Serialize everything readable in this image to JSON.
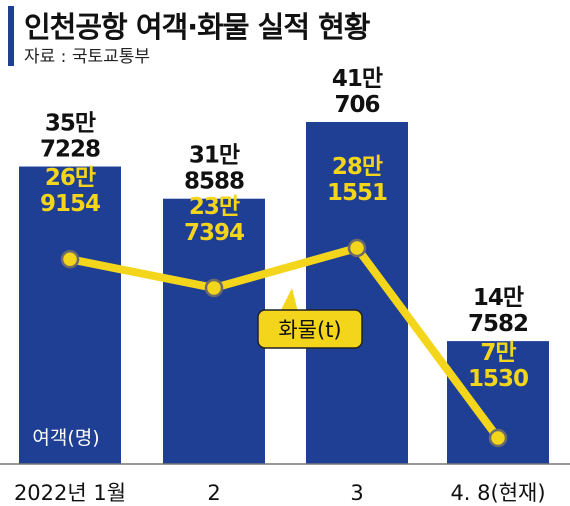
{
  "header": {
    "title": "인천공항 여객·화물 실적 현황",
    "source": "자료 : 국토교통부"
  },
  "chart_data": {
    "type": "bar",
    "categories": [
      "2022년 1월",
      "2",
      "3",
      "4. 8(현재)"
    ],
    "series": [
      {
        "name": "여객(명)",
        "type": "bar",
        "values": [
          357228,
          318588,
          410706,
          147582
        ],
        "labels": [
          [
            "35만",
            "7228"
          ],
          [
            "31만",
            "8588"
          ],
          [
            "41만",
            "706"
          ],
          [
            "14만",
            "7582"
          ]
        ]
      },
      {
        "name": "화물(t)",
        "type": "line",
        "values": [
          269154,
          237394,
          281551,
          71530
        ],
        "labels": [
          [
            "26만",
            "9154"
          ],
          [
            "23만",
            "7394"
          ],
          [
            "28만",
            "1551"
          ],
          [
            "7만",
            "1530"
          ]
        ]
      }
    ],
    "grid": false,
    "legend": "inline",
    "colors": {
      "bar": "#1e3f94",
      "line": "#f3d51b",
      "line_label": "#f3d51b",
      "bar_label": "#111111",
      "point_stroke": "#6b6b6b"
    }
  }
}
